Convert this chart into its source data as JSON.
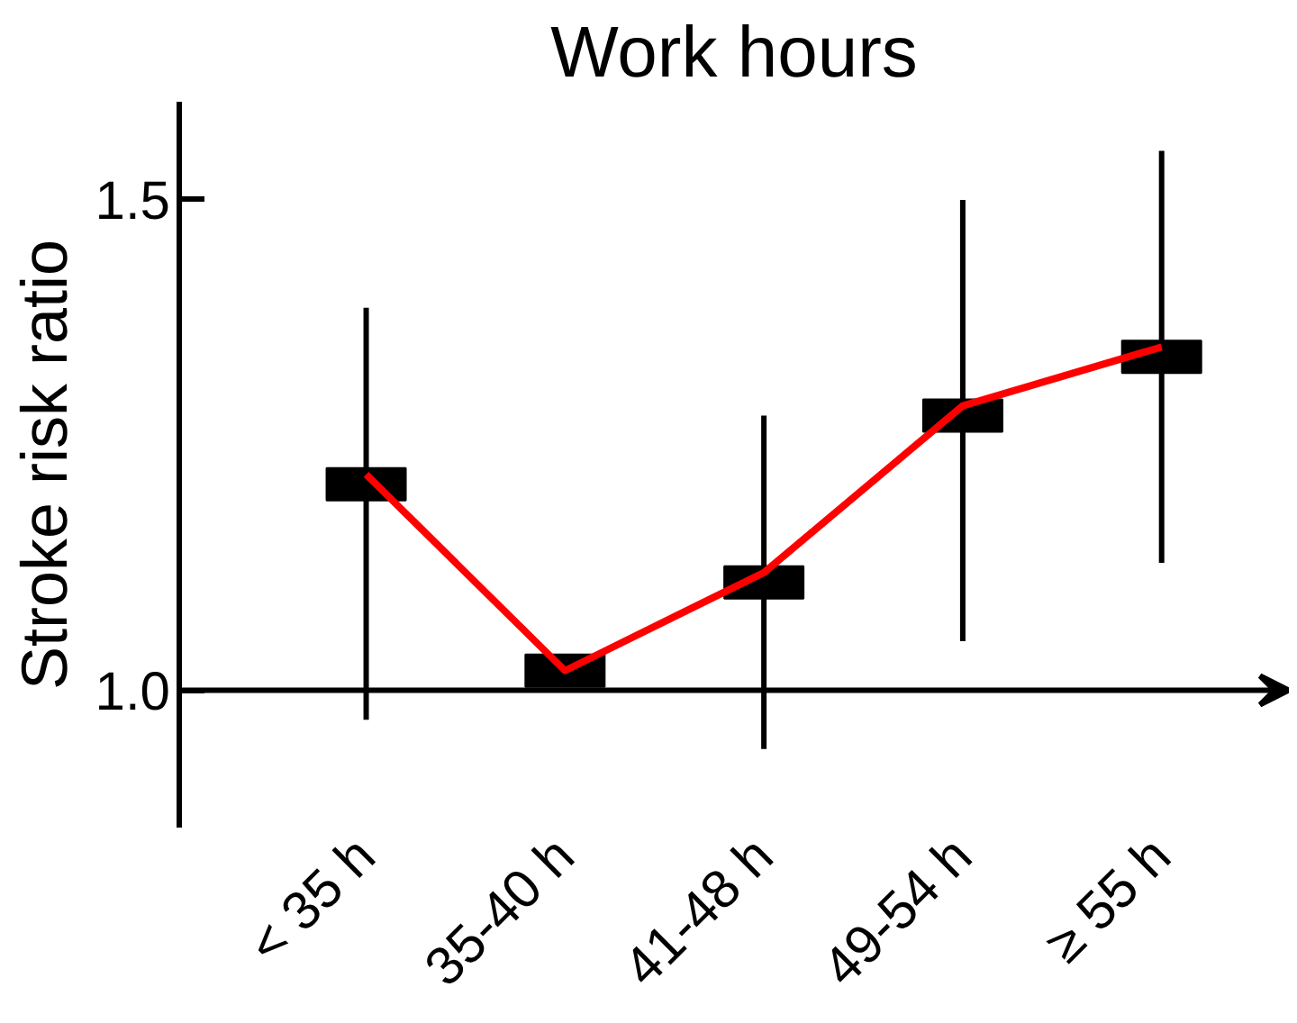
{
  "chart_data": {
    "type": "line",
    "title": "Work hours",
    "ylabel": "Stroke risk ratio",
    "categories": [
      "< 35 h",
      "35-40 h",
      "41-48 h",
      "49-54 h",
      "≥ 55 h"
    ],
    "series": [
      {
        "type": "scatter",
        "color": "#000000",
        "marker": "square",
        "values": [
          1.21,
          1.02,
          1.11,
          1.28,
          1.34
        ],
        "errors": [
          [
            0.97,
            1.39
          ],
          null,
          [
            0.94,
            1.28
          ],
          [
            1.05,
            1.5
          ],
          [
            1.13,
            1.55
          ]
        ]
      },
      {
        "type": "line",
        "color": "#ff0000",
        "marker": "none",
        "line_style": "solid",
        "values": [
          1.22,
          1.02,
          1.12,
          1.29,
          1.35
        ]
      }
    ],
    "ylim": [
      0.86,
      1.6
    ],
    "yticks": [
      {
        "value": 1.0,
        "label": "1.0"
      },
      {
        "value": 1.5,
        "label": "1.5"
      }
    ],
    "grid": false
  }
}
